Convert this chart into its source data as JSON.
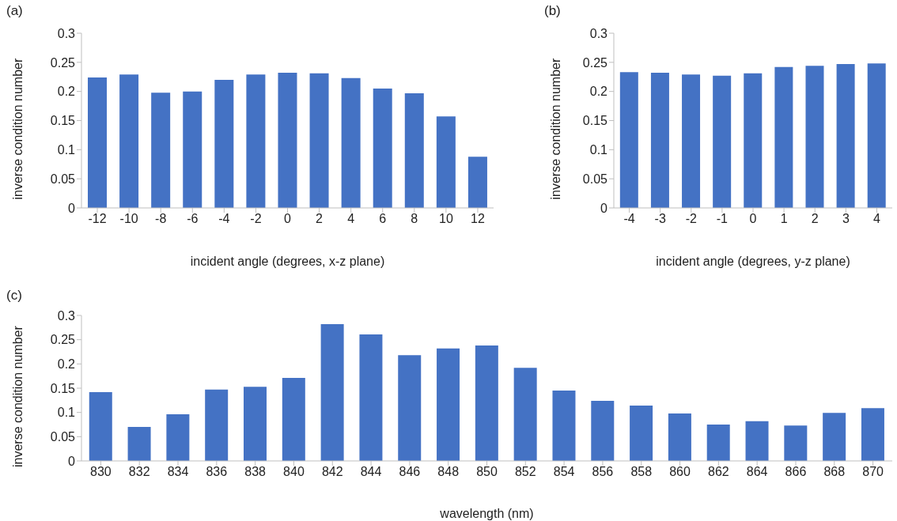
{
  "chart_data": [
    {
      "type": "bar",
      "title": "(a)",
      "xlabel": "incident angle (degrees, x-z plane)",
      "ylabel": "inverse condition number",
      "categories": [
        "-12",
        "-10",
        "-8",
        "-6",
        "-4",
        "-2",
        "0",
        "2",
        "4",
        "6",
        "8",
        "10",
        "12"
      ],
      "values": [
        0.224,
        0.229,
        0.198,
        0.2,
        0.22,
        0.229,
        0.232,
        0.231,
        0.223,
        0.205,
        0.197,
        0.157,
        0.088
      ],
      "color": "#4472c4",
      "ylim": [
        0,
        0.3
      ],
      "yticks": [
        0,
        0.05,
        0.1,
        0.15,
        0.2,
        0.25,
        0.3
      ],
      "grid": false
    },
    {
      "type": "bar",
      "title": "(b)",
      "xlabel": "incident angle (degrees, y-z plane)",
      "ylabel": "inverse condition number",
      "categories": [
        "-4",
        "-3",
        "-2",
        "-1",
        "0",
        "1",
        "2",
        "3",
        "4"
      ],
      "values": [
        0.233,
        0.232,
        0.229,
        0.227,
        0.231,
        0.242,
        0.244,
        0.247,
        0.248
      ],
      "color": "#4472c4",
      "ylim": [
        0,
        0.3
      ],
      "yticks": [
        0,
        0.05,
        0.1,
        0.15,
        0.2,
        0.25,
        0.3
      ],
      "grid": false
    },
    {
      "type": "bar",
      "title": "(c)",
      "xlabel": "wavelength (nm)",
      "ylabel": "inverse condition number",
      "categories": [
        "830",
        "832",
        "834",
        "836",
        "838",
        "840",
        "842",
        "844",
        "846",
        "848",
        "850",
        "852",
        "854",
        "856",
        "858",
        "860",
        "862",
        "864",
        "866",
        "868",
        "870"
      ],
      "values": [
        0.142,
        0.07,
        0.096,
        0.147,
        0.153,
        0.171,
        0.282,
        0.261,
        0.218,
        0.232,
        0.238,
        0.192,
        0.145,
        0.124,
        0.114,
        0.098,
        0.075,
        0.082,
        0.073,
        0.099,
        0.109
      ],
      "color": "#4472c4",
      "ylim": [
        0,
        0.3
      ],
      "yticks": [
        0,
        0.05,
        0.1,
        0.15,
        0.2,
        0.25,
        0.3
      ],
      "grid": false
    }
  ]
}
